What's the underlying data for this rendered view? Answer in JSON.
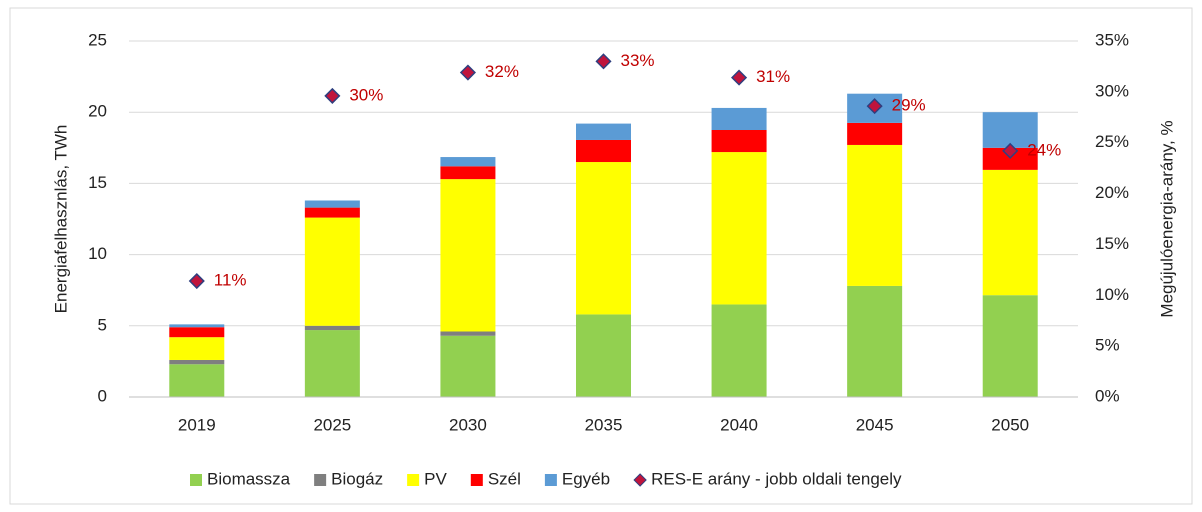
{
  "chart_data": {
    "type": "bar",
    "stacked": true,
    "categories": [
      "2019",
      "2025",
      "2030",
      "2035",
      "2040",
      "2045",
      "2050"
    ],
    "ylabel": "Energiafelhasznlás, TWh",
    "y2label": "Megújulóenergia-arány, %",
    "ylim": [
      0,
      25
    ],
    "yticks": [
      0,
      5,
      10,
      15,
      20,
      25
    ],
    "y2lim": [
      0,
      35
    ],
    "y2ticks": [
      {
        "value": 0,
        "label": "0%"
      },
      {
        "value": 5,
        "label": "5%"
      },
      {
        "value": 10,
        "label": "10%"
      },
      {
        "value": 15,
        "label": "15%"
      },
      {
        "value": 20,
        "label": "20%"
      },
      {
        "value": 25,
        "label": "25%"
      },
      {
        "value": 30,
        "label": "30%"
      },
      {
        "value": 35,
        "label": "35%"
      }
    ],
    "grid": true,
    "legend": "bottom",
    "series": [
      {
        "name": "Biomassza",
        "color": "#92d050",
        "values": [
          2.3,
          4.7,
          4.3,
          5.8,
          6.5,
          7.8,
          7.15
        ]
      },
      {
        "name": "Biogáz",
        "color": "#7f7f7f",
        "values": [
          0.3,
          0.3,
          0.3,
          0,
          0,
          0,
          0
        ]
      },
      {
        "name": "PV",
        "color": "#ffff00",
        "values": [
          1.6,
          7.6,
          10.7,
          10.7,
          10.7,
          9.9,
          8.8
        ]
      },
      {
        "name": "Szél",
        "color": "#ff0000",
        "values": [
          0.7,
          0.7,
          0.9,
          1.55,
          1.55,
          1.55,
          1.55
        ]
      },
      {
        "name": "Egyéb",
        "color": "#5b9bd5",
        "values": [
          0.2,
          0.5,
          0.65,
          1.15,
          1.55,
          2.05,
          2.5
        ]
      },
      {
        "name": "RES-E arány - jobb oldali tengely",
        "type": "scatter",
        "axis": "y2",
        "color": "#c0143c",
        "values": [
          11.4,
          29.6,
          31.9,
          33.0,
          31.4,
          28.6,
          24.2
        ],
        "value_labels": [
          "11%",
          "30%",
          "32%",
          "33%",
          "31%",
          "29%",
          "24%"
        ]
      }
    ]
  }
}
